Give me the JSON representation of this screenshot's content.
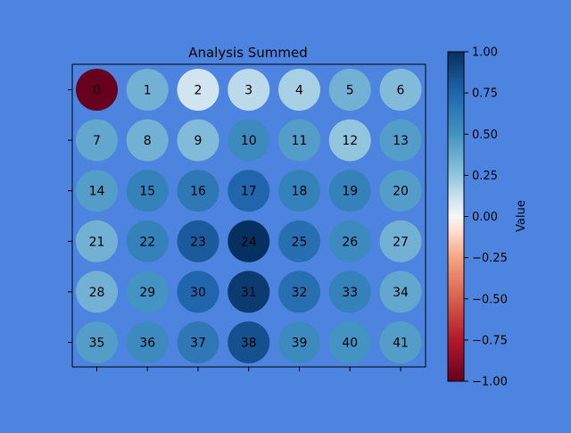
{
  "chart_data": {
    "type": "heatmap",
    "title": "Analysis Summed",
    "rows": 6,
    "cols": 7,
    "cells": [
      {
        "label": "0",
        "value": -1.0
      },
      {
        "label": "1",
        "value": 0.35
      },
      {
        "label": "2",
        "value": 0.1
      },
      {
        "label": "3",
        "value": 0.15
      },
      {
        "label": "4",
        "value": 0.2
      },
      {
        "label": "5",
        "value": 0.35
      },
      {
        "label": "6",
        "value": 0.3
      },
      {
        "label": "7",
        "value": 0.4
      },
      {
        "label": "8",
        "value": 0.35
      },
      {
        "label": "9",
        "value": 0.3
      },
      {
        "label": "10",
        "value": 0.55
      },
      {
        "label": "11",
        "value": 0.45
      },
      {
        "label": "12",
        "value": 0.25
      },
      {
        "label": "13",
        "value": 0.45
      },
      {
        "label": "14",
        "value": 0.45
      },
      {
        "label": "15",
        "value": 0.6
      },
      {
        "label": "16",
        "value": 0.65
      },
      {
        "label": "17",
        "value": 0.75
      },
      {
        "label": "18",
        "value": 0.6
      },
      {
        "label": "19",
        "value": 0.6
      },
      {
        "label": "20",
        "value": 0.45
      },
      {
        "label": "21",
        "value": 0.35
      },
      {
        "label": "22",
        "value": 0.6
      },
      {
        "label": "23",
        "value": 0.8
      },
      {
        "label": "24",
        "value": 1.0
      },
      {
        "label": "25",
        "value": 0.7
      },
      {
        "label": "26",
        "value": 0.55
      },
      {
        "label": "27",
        "value": 0.35
      },
      {
        "label": "28",
        "value": 0.35
      },
      {
        "label": "29",
        "value": 0.5
      },
      {
        "label": "30",
        "value": 0.75
      },
      {
        "label": "31",
        "value": 0.95
      },
      {
        "label": "32",
        "value": 0.7
      },
      {
        "label": "33",
        "value": 0.6
      },
      {
        "label": "34",
        "value": 0.4
      },
      {
        "label": "35",
        "value": 0.45
      },
      {
        "label": "36",
        "value": 0.55
      },
      {
        "label": "37",
        "value": 0.65
      },
      {
        "label": "38",
        "value": 0.85
      },
      {
        "label": "39",
        "value": 0.55
      },
      {
        "label": "40",
        "value": 0.5
      },
      {
        "label": "41",
        "value": 0.45
      }
    ],
    "colorbar": {
      "label": "Value",
      "range": [
        -1.0,
        1.0
      ],
      "colormap": "RdBu",
      "ticks": [
        "-1.00",
        "-0.75",
        "-0.50",
        "-0.25",
        "0.00",
        "0.25",
        "0.50",
        "0.75",
        "1.00"
      ]
    },
    "colors": {
      "background": "#4c84df",
      "plot_area": "#4c84df",
      "axis": "#000000"
    },
    "grid": false,
    "tick_labels_visible": false
  }
}
